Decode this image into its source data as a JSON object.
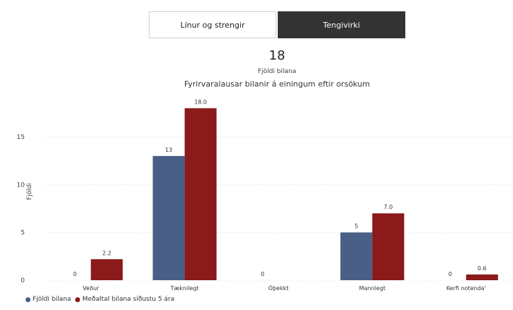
{
  "tabs": [
    {
      "label": "Línur og strengir",
      "active": false
    },
    {
      "label": "Tengivirki",
      "active": true
    }
  ],
  "summary": {
    "value": "18",
    "caption": "Fjöldi bilana"
  },
  "colors": {
    "series1": "#4a5f86",
    "series2": "#8b1a1a",
    "grid": "#e2e2e2"
  },
  "chart_data": {
    "type": "bar",
    "title": "Fyrirvaralausar bilanir á einingum eftir orsökum",
    "xlabel": "",
    "ylabel": "Fjöldi",
    "categories": [
      "Veður",
      "Tæknilegt",
      "Óþekkt",
      "Mannlegt",
      "Kerfi notenda'"
    ],
    "series": [
      {
        "name": "Fjöldi bilana",
        "values": [
          0,
          13,
          0,
          5,
          0
        ],
        "labels": [
          "0",
          "13",
          "0",
          "5",
          "0"
        ]
      },
      {
        "name": "Meðaltal bilana síðustu 5 ára",
        "values": [
          2.2,
          18.0,
          null,
          7.0,
          0.6
        ],
        "labels": [
          "2.2",
          "18.0",
          "",
          "7.0",
          "0.6"
        ]
      }
    ],
    "yticks": [
      0,
      5,
      10,
      15
    ],
    "ylim": [
      0,
      19.4
    ],
    "grid": true,
    "legend": "bottom-left"
  }
}
